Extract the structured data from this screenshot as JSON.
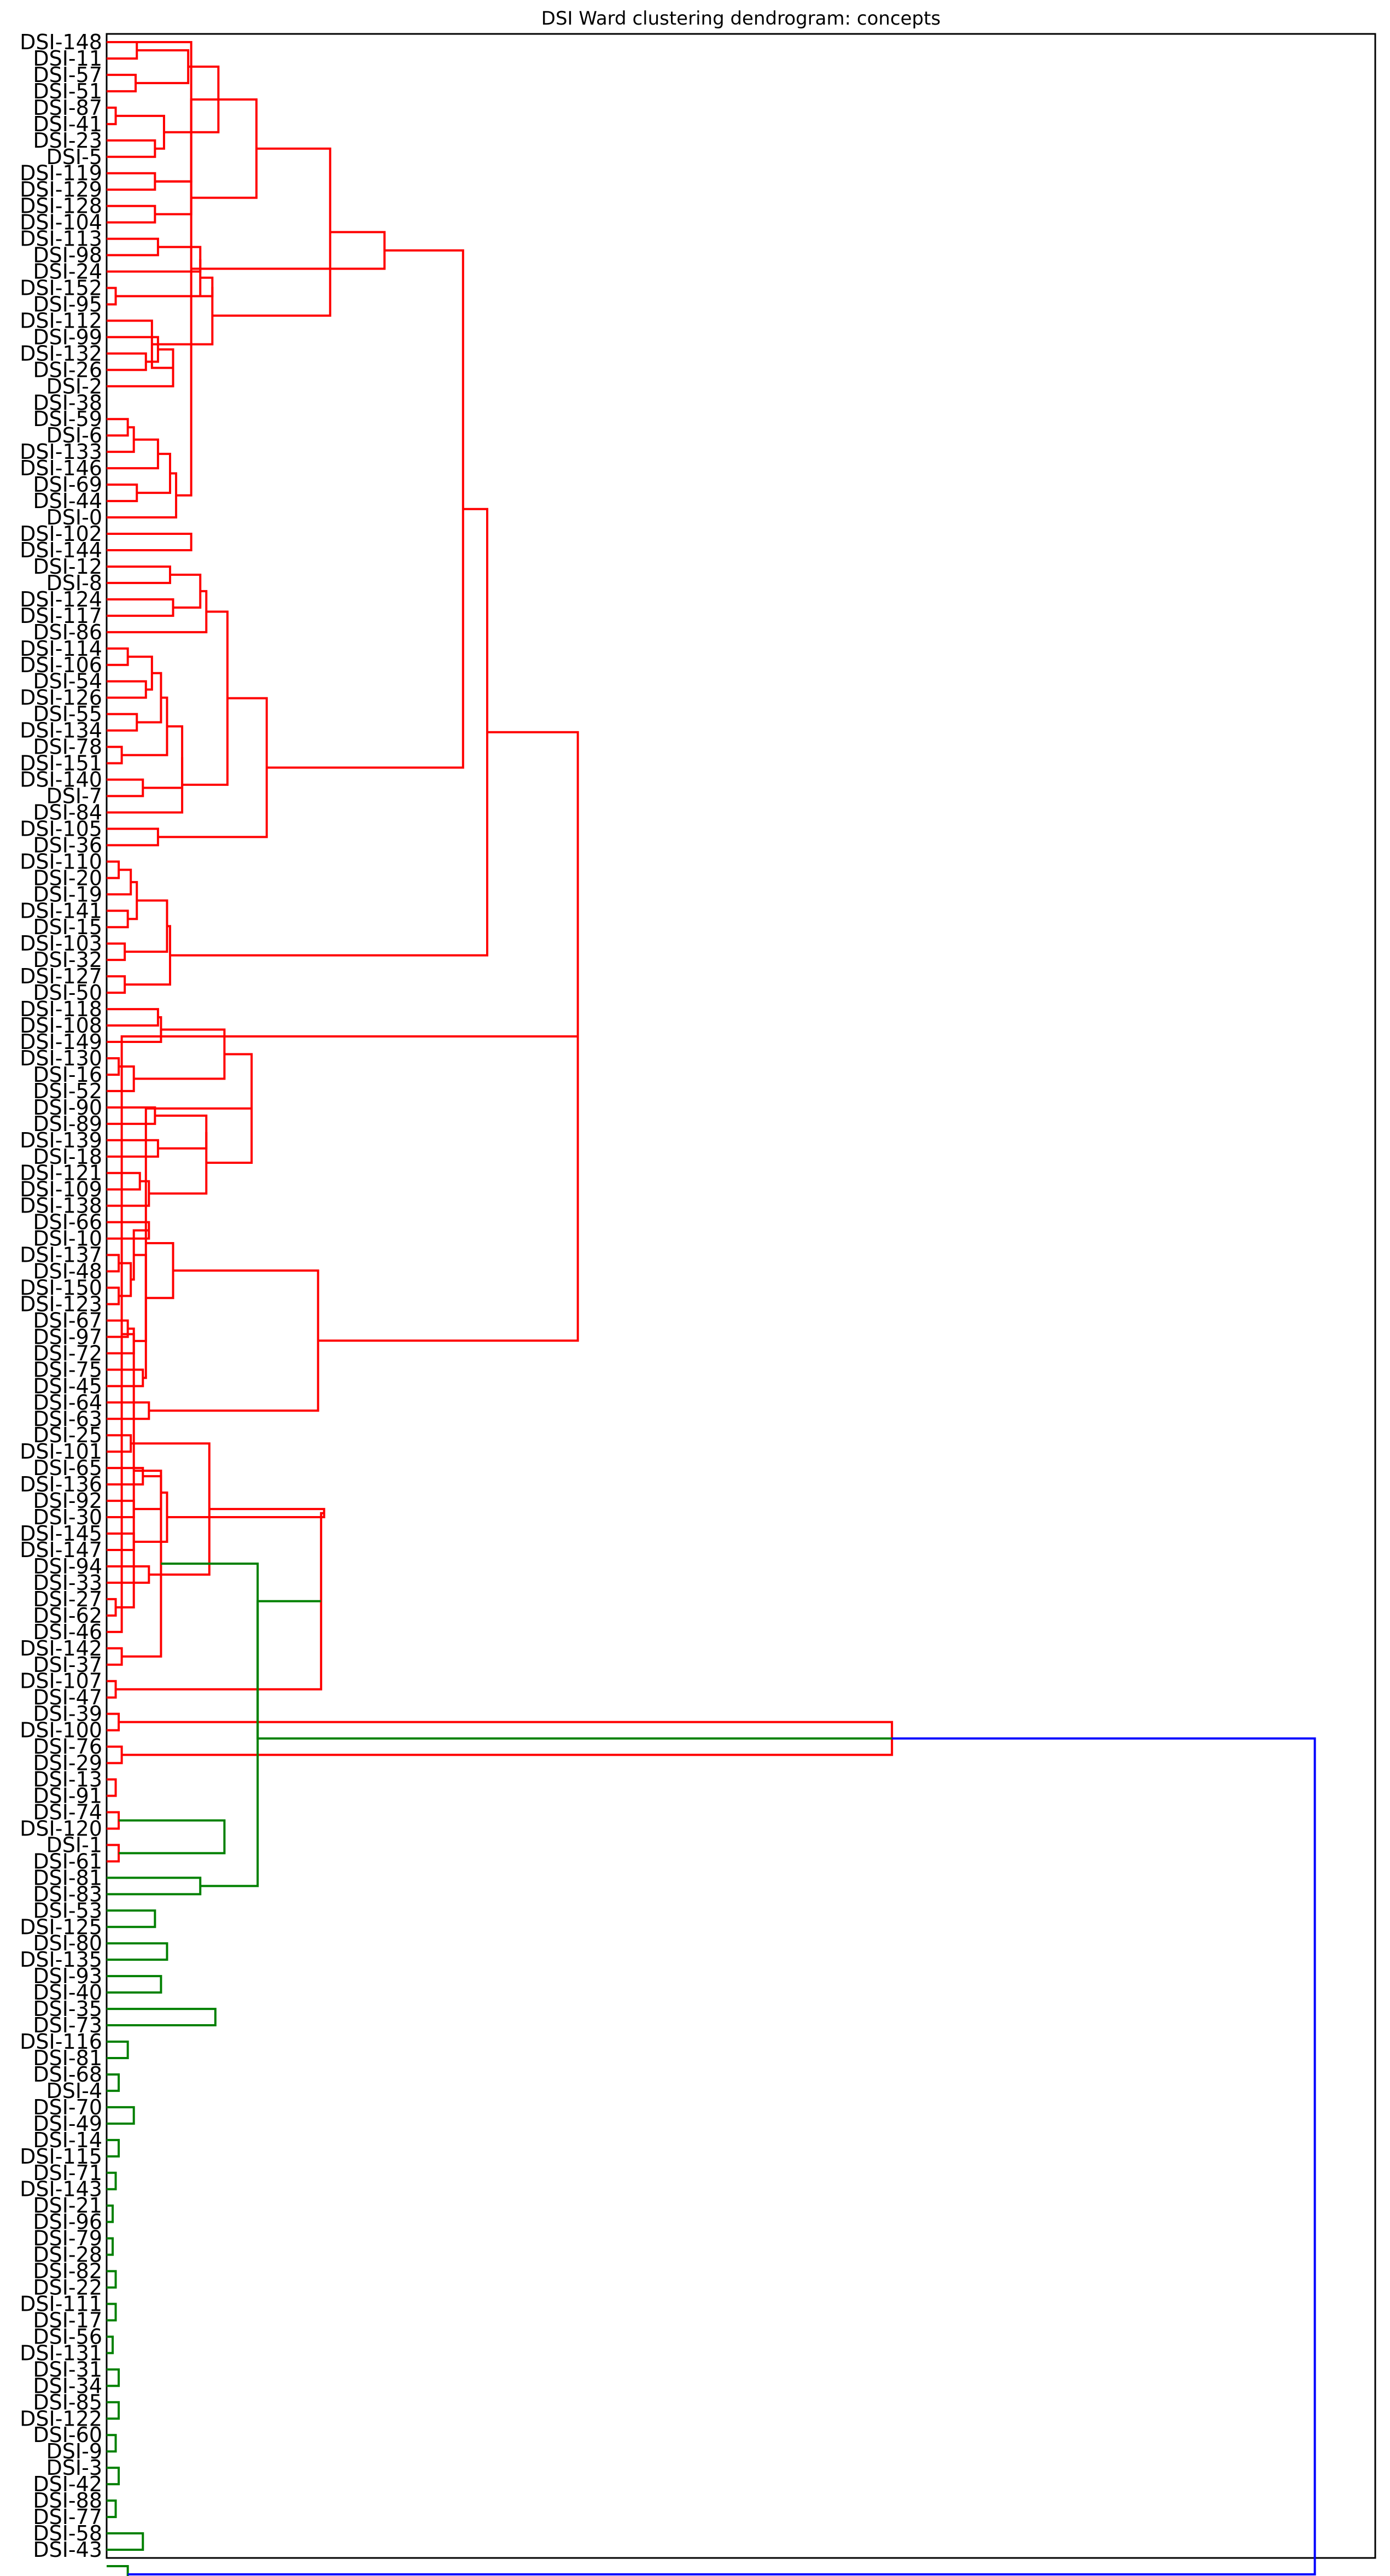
{
  "chart_data": {
    "type": "dendrogram",
    "orientation": "horizontal",
    "title": "DSI Ward clustering dendrogram: concepts",
    "xlabel": "",
    "ylabel": "",
    "xlim": [
      0,
      2.1
    ],
    "colors": {
      "cluster_1": "#ff0000",
      "cluster_2": "#008000",
      "above_threshold": "#0000ff"
    },
    "leaves_top_to_bottom": [
      "DSI-148",
      "DSI-11",
      "DSI-57",
      "DSI-51",
      "DSI-87",
      "DSI-41",
      "DSI-23",
      "DSI-5",
      "DSI-119",
      "DSI-129",
      "DSI-128",
      "DSI-104",
      "DSI-113",
      "DSI-98",
      "DSI-24",
      "DSI-152",
      "DSI-95",
      "DSI-112",
      "DSI-99",
      "DSI-132",
      "DSI-26",
      "DSI-2",
      "DSI-38",
      "DSI-59",
      "DSI-6",
      "DSI-133",
      "DSI-146",
      "DSI-69",
      "DSI-44",
      "DSI-0",
      "DSI-102",
      "DSI-144",
      "DSI-12",
      "DSI-8",
      "DSI-124",
      "DSI-117",
      "DSI-86",
      "DSI-114",
      "DSI-106",
      "DSI-54",
      "DSI-126",
      "DSI-55",
      "DSI-134",
      "DSI-78",
      "DSI-151",
      "DSI-140",
      "DSI-7",
      "DSI-84",
      "DSI-105",
      "DSI-36",
      "DSI-110",
      "DSI-20",
      "DSI-19",
      "DSI-141",
      "DSI-15",
      "DSI-103",
      "DSI-32",
      "DSI-127",
      "DSI-50",
      "DSI-118",
      "DSI-108",
      "DSI-149",
      "DSI-130",
      "DSI-16",
      "DSI-52",
      "DSI-90",
      "DSI-89",
      "DSI-139",
      "DSI-18",
      "DSI-121",
      "DSI-109",
      "DSI-138",
      "DSI-66",
      "DSI-10",
      "DSI-137",
      "DSI-48",
      "DSI-150",
      "DSI-123",
      "DSI-67",
      "DSI-97",
      "DSI-72",
      "DSI-75",
      "DSI-45",
      "DSI-64",
      "DSI-63",
      "DSI-25",
      "DSI-101",
      "DSI-65",
      "DSI-136",
      "DSI-92",
      "DSI-30",
      "DSI-145",
      "DSI-147",
      "DSI-94",
      "DSI-33",
      "DSI-27",
      "DSI-62",
      "DSI-46",
      "DSI-142",
      "DSI-37",
      "DSI-107",
      "DSI-47",
      "DSI-39",
      "DSI-100",
      "DSI-76",
      "DSI-29",
      "DSI-13",
      "DSI-91",
      "DSI-74",
      "DSI-120",
      "DSI-1",
      "DSI-61",
      "DSI-81",
      "DSI-83",
      "DSI-53",
      "DSI-125",
      "DSI-80",
      "DSI-135",
      "DSI-93",
      "DSI-40",
      "DSI-35",
      "DSI-73",
      "DSI-116",
      "DSI-81",
      "DSI-68",
      "DSI-4",
      "DSI-70",
      "DSI-49",
      "DSI-14",
      "DSI-115",
      "DSI-71",
      "DSI-143",
      "DSI-21",
      "DSI-96",
      "DSI-79",
      "DSI-28",
      "DSI-82",
      "DSI-22",
      "DSI-111",
      "DSI-17",
      "DSI-56",
      "DSI-131",
      "DSI-31",
      "DSI-34",
      "DSI-85",
      "DSI-122",
      "DSI-60",
      "DSI-9",
      "DSI-3",
      "DSI-42",
      "DSI-88",
      "DSI-77",
      "DSI-58",
      "DSI-43"
    ],
    "merges": [
      {
        "c": "r",
        "h": 0.05,
        "a": 0,
        "b": 1
      },
      {
        "c": "r",
        "h": 0.048,
        "a": 2,
        "b": 3
      },
      {
        "c": "r",
        "h": 0.135,
        "a": "m0",
        "b": "m1"
      },
      {
        "c": "r",
        "h": 0.015,
        "a": 4,
        "b": 5
      },
      {
        "c": "r",
        "h": 0.08,
        "a": 6,
        "b": 7
      },
      {
        "c": "r",
        "h": 0.095,
        "a": "m3",
        "b": "m4"
      },
      {
        "c": "r",
        "h": 0.185,
        "a": "m2",
        "b": "m5"
      },
      {
        "c": "r",
        "h": 0.08,
        "a": 8,
        "b": 9
      },
      {
        "c": "r",
        "h": 0.14,
        "a": "m7",
        "b": "m6b"
      },
      {
        "c": "r",
        "h": 0.08,
        "a": 10,
        "b": 11
      },
      {
        "c": "r",
        "h": 0.14,
        "a": "m9",
        "b": "m7"
      },
      {
        "c": "r",
        "h": 0.248,
        "a": "m6",
        "b": "m10"
      },
      {
        "c": "r",
        "h": 0.085,
        "a": 12,
        "b": 13
      },
      {
        "c": "r",
        "h": 0.015,
        "a": 15,
        "b": 16
      },
      {
        "c": "r",
        "h": 0.155,
        "a": "m12",
        "b": 14
      },
      {
        "c": "r",
        "h": 0.155,
        "a": "m14",
        "b": "m13"
      },
      {
        "c": "r",
        "h": 0.175,
        "a": "m15",
        "b": "m13"
      },
      {
        "c": "r",
        "h": 0.065,
        "a": 19,
        "b": 20
      },
      {
        "c": "r",
        "h": 0.085,
        "a": 18,
        "b": "m17"
      },
      {
        "c": "r",
        "h": 0.11,
        "a": "m18",
        "b": 21
      },
      {
        "c": "r",
        "h": 0.075,
        "a": 17,
        "b": "m19"
      },
      {
        "c": "r",
        "h": 0.175,
        "a": "m16",
        "b": "m20"
      },
      {
        "c": "r",
        "h": 0.37,
        "a": "m11",
        "b": "m21"
      },
      {
        "c": "r",
        "h": 0.035,
        "a": 23,
        "b": 24
      },
      {
        "c": "r",
        "h": 0.045,
        "a": "m23",
        "b": 25
      },
      {
        "c": "r",
        "h": 0.085,
        "a": "m24",
        "b": 26
      },
      {
        "c": "r",
        "h": 0.05,
        "a": 27,
        "b": 28
      },
      {
        "c": "r",
        "h": 0.105,
        "a": "m25",
        "b": "m26"
      },
      {
        "c": "r",
        "h": 0.115,
        "a": "m27",
        "b": 29
      },
      {
        "c": "r",
        "h": 0.14,
        "a": "m28",
        "b": "m29b"
      },
      {
        "c": "r",
        "h": 0.14,
        "a": 30,
        "b": 31
      },
      {
        "c": "r",
        "h": 0.46,
        "a": "m22",
        "b": "m29"
      },
      {
        "c": "r",
        "h": 0.105,
        "a": 32,
        "b": 33
      },
      {
        "c": "r",
        "h": 0.11,
        "a": 34,
        "b": 35
      },
      {
        "c": "r",
        "h": 0.155,
        "a": "m32",
        "b": "m33"
      },
      {
        "c": "r",
        "h": 0.165,
        "a": "m34",
        "b": 36
      },
      {
        "c": "r",
        "h": 0.035,
        "a": 37,
        "b": 38
      },
      {
        "c": "r",
        "h": 0.065,
        "a": 39,
        "b": 40
      },
      {
        "c": "r",
        "h": 0.075,
        "a": "m36",
        "b": "m37"
      },
      {
        "c": "r",
        "h": 0.05,
        "a": 41,
        "b": 42
      },
      {
        "c": "r",
        "h": 0.09,
        "a": "m38",
        "b": "m39"
      },
      {
        "c": "r",
        "h": 0.025,
        "a": 43,
        "b": 44
      },
      {
        "c": "r",
        "h": 0.1,
        "a": "m40",
        "b": "m41"
      },
      {
        "c": "r",
        "h": 0.06,
        "a": 45,
        "b": 46
      },
      {
        "c": "r",
        "h": 0.125,
        "a": "m42",
        "b": "m43"
      },
      {
        "c": "r",
        "h": 0.125,
        "a": "m44",
        "b": 47
      },
      {
        "c": "r",
        "h": 0.2,
        "a": "m35",
        "b": "m45"
      },
      {
        "c": "r",
        "h": 0.085,
        "a": 48,
        "b": 49
      },
      {
        "c": "r",
        "h": 0.265,
        "a": "m46",
        "b": "m47"
      },
      {
        "c": "r",
        "h": 0.59,
        "a": "m31",
        "b": "m48"
      },
      {
        "c": "r",
        "h": 0.02,
        "a": 50,
        "b": 51
      },
      {
        "c": "r",
        "h": 0.04,
        "a": "m50",
        "b": 52
      },
      {
        "c": "r",
        "h": 0.035,
        "a": 53,
        "b": 54
      },
      {
        "c": "r",
        "h": 0.05,
        "a": "m51",
        "b": "m52"
      },
      {
        "c": "r",
        "h": 0.03,
        "a": 55,
        "b": 56
      },
      {
        "c": "r",
        "h": 0.1,
        "a": "m53",
        "b": "m54"
      },
      {
        "c": "r",
        "h": 0.03,
        "a": 57,
        "b": 58
      },
      {
        "c": "r",
        "h": 0.105,
        "a": "m55",
        "b": "m56"
      },
      {
        "c": "r",
        "h": 0.63,
        "a": "m49",
        "b": "m57"
      },
      {
        "c": "r",
        "h": 0.085,
        "a": 59,
        "b": 60
      },
      {
        "c": "r",
        "h": 0.09,
        "a": "m59",
        "b": 61
      },
      {
        "c": "r",
        "h": 0.02,
        "a": 62,
        "b": 63
      },
      {
        "c": "r",
        "h": 0.045,
        "a": "m61",
        "b": 64
      },
      {
        "c": "r",
        "h": 0.195,
        "a": "m60",
        "b": "m62"
      },
      {
        "c": "r",
        "h": 0.08,
        "a": 65,
        "b": 66
      },
      {
        "c": "r",
        "h": 0.085,
        "a": 67,
        "b": 68
      },
      {
        "c": "r",
        "h": 0.165,
        "a": "m64",
        "b": "m65"
      },
      {
        "c": "r",
        "h": 0.055,
        "a": 69,
        "b": 70
      },
      {
        "c": "r",
        "h": 0.07,
        "a": "m67",
        "b": 71
      },
      {
        "c": "r",
        "h": 0.165,
        "a": "m66",
        "b": "m68"
      },
      {
        "c": "r",
        "h": 0.24,
        "a": "m63",
        "b": "m69"
      },
      {
        "c": "r",
        "h": 0.07,
        "a": 72,
        "b": 73
      },
      {
        "c": "r",
        "h": 0.02,
        "a": 74,
        "b": 75
      },
      {
        "c": "r",
        "h": 0.02,
        "a": 76,
        "b": 77
      },
      {
        "c": "r",
        "h": 0.035,
        "a": 78,
        "b": 79
      },
      {
        "c": "r",
        "h": 0.04,
        "a": "m72",
        "b": "m73"
      },
      {
        "c": "r",
        "h": 0.045,
        "a": "m74",
        "b": 80
      },
      {
        "c": "r",
        "h": 0.045,
        "a": "m71",
        "b": "m75"
      },
      {
        "c": "r",
        "h": 0.06,
        "a": 81,
        "b": 82
      },
      {
        "c": "r",
        "h": 0.065,
        "a": "m76",
        "b": "m77"
      },
      {
        "c": "r",
        "h": 0.065,
        "a": "m70",
        "b": "m78"
      },
      {
        "c": "r",
        "h": 0.07,
        "a": 83,
        "b": 84
      },
      {
        "c": "r",
        "h": 0.11,
        "a": "m79",
        "b": "m80"
      },
      {
        "c": "r",
        "h": 0.04,
        "a": 85,
        "b": 86
      },
      {
        "c": "r",
        "h": 0.06,
        "a": 87,
        "b": 88
      },
      {
        "c": "r",
        "h": 0.045,
        "a": 89,
        "b": 90
      },
      {
        "c": "r",
        "h": 0.045,
        "a": 91,
        "b": 92
      },
      {
        "c": "r",
        "h": 0.09,
        "a": "m84",
        "b": "m85"
      },
      {
        "c": "r",
        "h": 0.07,
        "a": 93,
        "b": 94
      },
      {
        "c": "r",
        "h": 0.1,
        "a": "m86",
        "b": "m87"
      },
      {
        "c": "r",
        "h": 0.17,
        "a": "m83",
        "b": "m88"
      },
      {
        "c": "r",
        "h": 0.35,
        "a": "m81",
        "b": "m82"
      },
      {
        "c": "r",
        "h": 0.36,
        "a": "m89",
        "b": "m90"
      },
      {
        "c": "r",
        "h": 0.78,
        "a": "m58",
        "b": "m91"
      },
      {
        "c": "r",
        "h": 0.015,
        "a": 95,
        "b": 96
      },
      {
        "c": "r",
        "h": 0.025,
        "a": "m93",
        "b": 97
      },
      {
        "c": "r",
        "h": 0.025,
        "a": 98,
        "b": 99
      },
      {
        "c": "r",
        "h": 0.045,
        "a": "m94",
        "b": "m95"
      },
      {
        "c": "r",
        "h": 0.015,
        "a": 100,
        "b": 101
      },
      {
        "c": "r",
        "h": 0.02,
        "a": 102,
        "b": 103
      },
      {
        "c": "r",
        "h": 0.025,
        "a": 104,
        "b": 105
      },
      {
        "c": "r",
        "h": 0.015,
        "a": 106,
        "b": 107
      },
      {
        "c": "r",
        "h": 0.02,
        "a": 108,
        "b": 109
      },
      {
        "c": "r",
        "h": 0.02,
        "a": 110,
        "b": 111
      },
      {
        "c": "r",
        "h": 0.09,
        "a": "m96",
        "b": "m97"
      },
      {
        "c": "r",
        "h": 0.355,
        "a": "m92",
        "b": "m98"
      },
      {
        "c": "r",
        "h": 1.3,
        "a": "m99",
        "b": "m100"
      },
      {
        "c": "g",
        "h": 0.155,
        "a": 112,
        "b": 113
      },
      {
        "c": "g",
        "h": 0.08,
        "a": 114,
        "b": 115
      },
      {
        "c": "g",
        "h": 0.195,
        "a": "m102",
        "b": "m103"
      },
      {
        "c": "g",
        "h": 0.1,
        "a": 116,
        "b": 117
      },
      {
        "c": "g",
        "h": 0.09,
        "a": 118,
        "b": 119
      },
      {
        "c": "g",
        "h": 0.18,
        "a": 120,
        "b": 121
      },
      {
        "c": "g",
        "h": 0.25,
        "a": "m105",
        "b": "m106"
      },
      {
        "c": "g",
        "h": 0.25,
        "a": "m104",
        "b": "m107"
      },
      {
        "c": "g",
        "h": 0.035,
        "a": 122,
        "b": 123
      },
      {
        "c": "g",
        "h": 0.02,
        "a": 124,
        "b": 125
      },
      {
        "c": "g",
        "h": 0.045,
        "a": 126,
        "b": 127
      },
      {
        "c": "g",
        "h": 0.02,
        "a": 128,
        "b": 129
      },
      {
        "c": "g",
        "h": 0.015,
        "a": 130,
        "b": 131
      },
      {
        "c": "g",
        "h": 0.01,
        "a": 132,
        "b": 133
      },
      {
        "c": "g",
        "h": 0.01,
        "a": 134,
        "b": 135
      },
      {
        "c": "g",
        "h": 0.015,
        "a": 136,
        "b": 137
      },
      {
        "c": "g",
        "h": 0.015,
        "a": 138,
        "b": 139
      },
      {
        "c": "g",
        "h": 0.01,
        "a": 140,
        "b": 141
      },
      {
        "c": "g",
        "h": 0.02,
        "a": 142,
        "b": 143
      },
      {
        "c": "g",
        "h": 0.02,
        "a": 144,
        "b": 145
      },
      {
        "c": "g",
        "h": 0.015,
        "a": 146,
        "b": 147
      },
      {
        "c": "g",
        "h": 0.02,
        "a": 148,
        "b": 149
      },
      {
        "c": "g",
        "h": 0.015,
        "a": 150,
        "b": 151
      },
      {
        "c": "g",
        "h": 0.06,
        "a": 152,
        "b": 153
      },
      {
        "c": "g",
        "h": 0.035,
        "a": 154,
        "b": 155
      },
      {
        "c": "b",
        "h": 2.0,
        "a": "red",
        "b": "green"
      }
    ]
  }
}
